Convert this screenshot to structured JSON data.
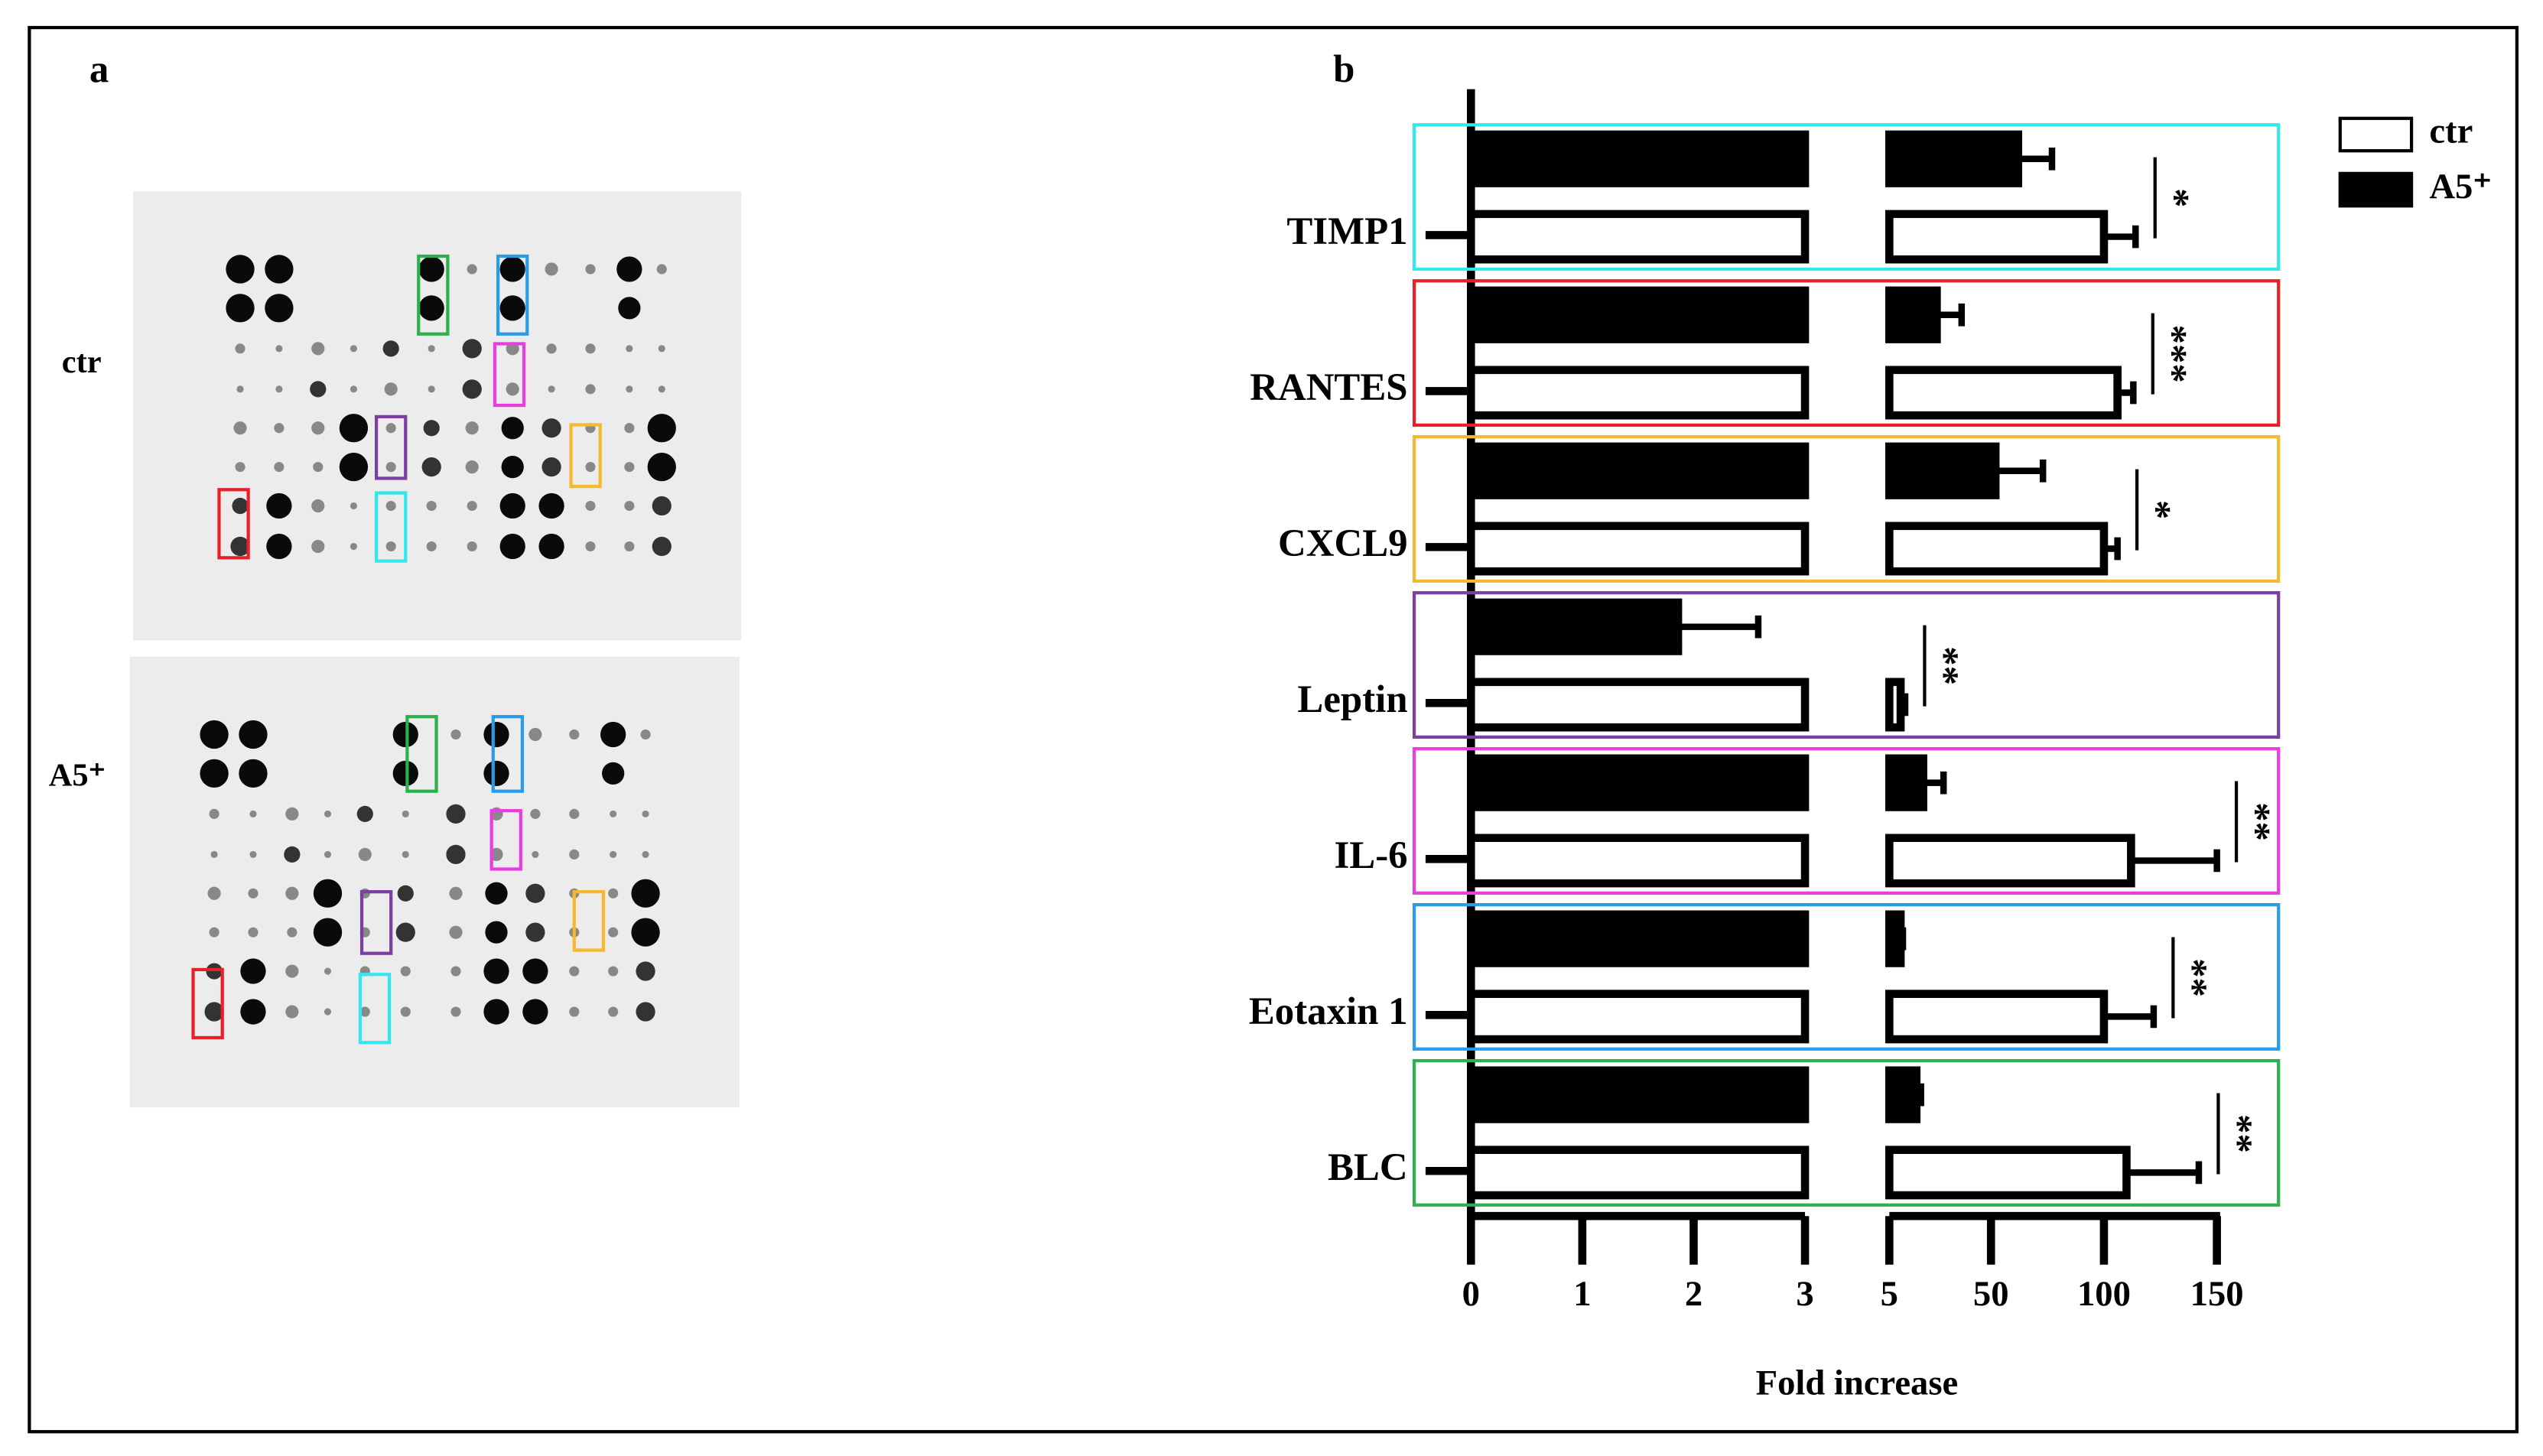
{
  "panels": {
    "a": {
      "label": "a",
      "rows": [
        "ctr",
        "A5⁺"
      ]
    }
  },
  "chart_data": {
    "type": "bar",
    "orientation": "horizontal",
    "label": "b",
    "categories": [
      "TIMP1",
      "RANTES",
      "CXCL9",
      "Leptin",
      "IL-6",
      "Eotaxin 1",
      "BLC"
    ],
    "box_colors": [
      "#33e6f0",
      "#e8202a",
      "#f5b82e",
      "#7a3fa0",
      "#e83ee0",
      "#2a9be8",
      "#2fb04e"
    ],
    "series": [
      {
        "name": "ctr",
        "color": "#ffffff",
        "values": [
          100,
          106,
          100,
          10,
          112,
          100,
          110
        ],
        "errors": [
          14,
          7,
          6,
          2,
          38,
          22,
          32
        ]
      },
      {
        "name": "A5⁺",
        "color": "#000000",
        "values": [
          62,
          26,
          52,
          1.86,
          20,
          10,
          17
        ],
        "errors": [
          15,
          11,
          21,
          0.72,
          9,
          1,
          2
        ]
      }
    ],
    "significance": [
      "*",
      "***",
      "*",
      "**",
      "**",
      "**",
      "**"
    ],
    "xlabel": "Fold increase",
    "xlim": [
      0,
      150
    ],
    "xbreak": [
      3,
      5
    ],
    "xticks": [
      0,
      1,
      2,
      3,
      5,
      50,
      100,
      150
    ]
  }
}
